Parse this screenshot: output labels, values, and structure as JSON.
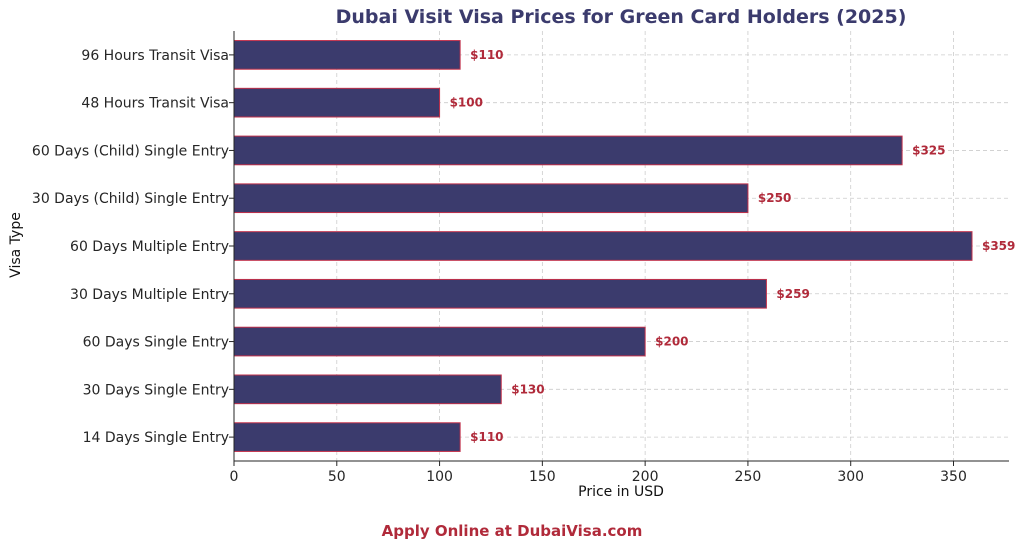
{
  "chart_data": {
    "type": "bar",
    "orientation": "horizontal",
    "title": "Dubai Visit Visa Prices for Green Card Holders (2025)",
    "xlabel": "Price in USD",
    "ylabel": "Visa Type",
    "categories": [
      "96 Hours Transit Visa",
      "48 Hours Transit Visa",
      "60 Days (Child) Single Entry",
      "30 Days (Child) Single Entry",
      "60 Days Multiple Entry",
      "30 Days Multiple Entry",
      "60 Days Single Entry",
      "30 Days Single Entry",
      "14 Days Single Entry"
    ],
    "values": [
      110,
      100,
      325,
      250,
      359,
      259,
      200,
      130,
      110
    ],
    "data_labels": [
      "$110",
      "$100",
      "$325",
      "$250",
      "$359",
      "$259",
      "$200",
      "$130",
      "$110"
    ],
    "xlim": [
      0,
      377
    ],
    "xticks": [
      "0",
      "50",
      "100",
      "150",
      "200",
      "250",
      "300",
      "350"
    ],
    "grid": true,
    "colors": {
      "bar": "#3b3b6d",
      "bar_edge": "#c0304a",
      "title": "#3b3b6d",
      "data_label": "#b02a3a"
    }
  },
  "footer": {
    "text": "Apply Online at DubaiVisa.com",
    "color": "#b02a3a"
  }
}
